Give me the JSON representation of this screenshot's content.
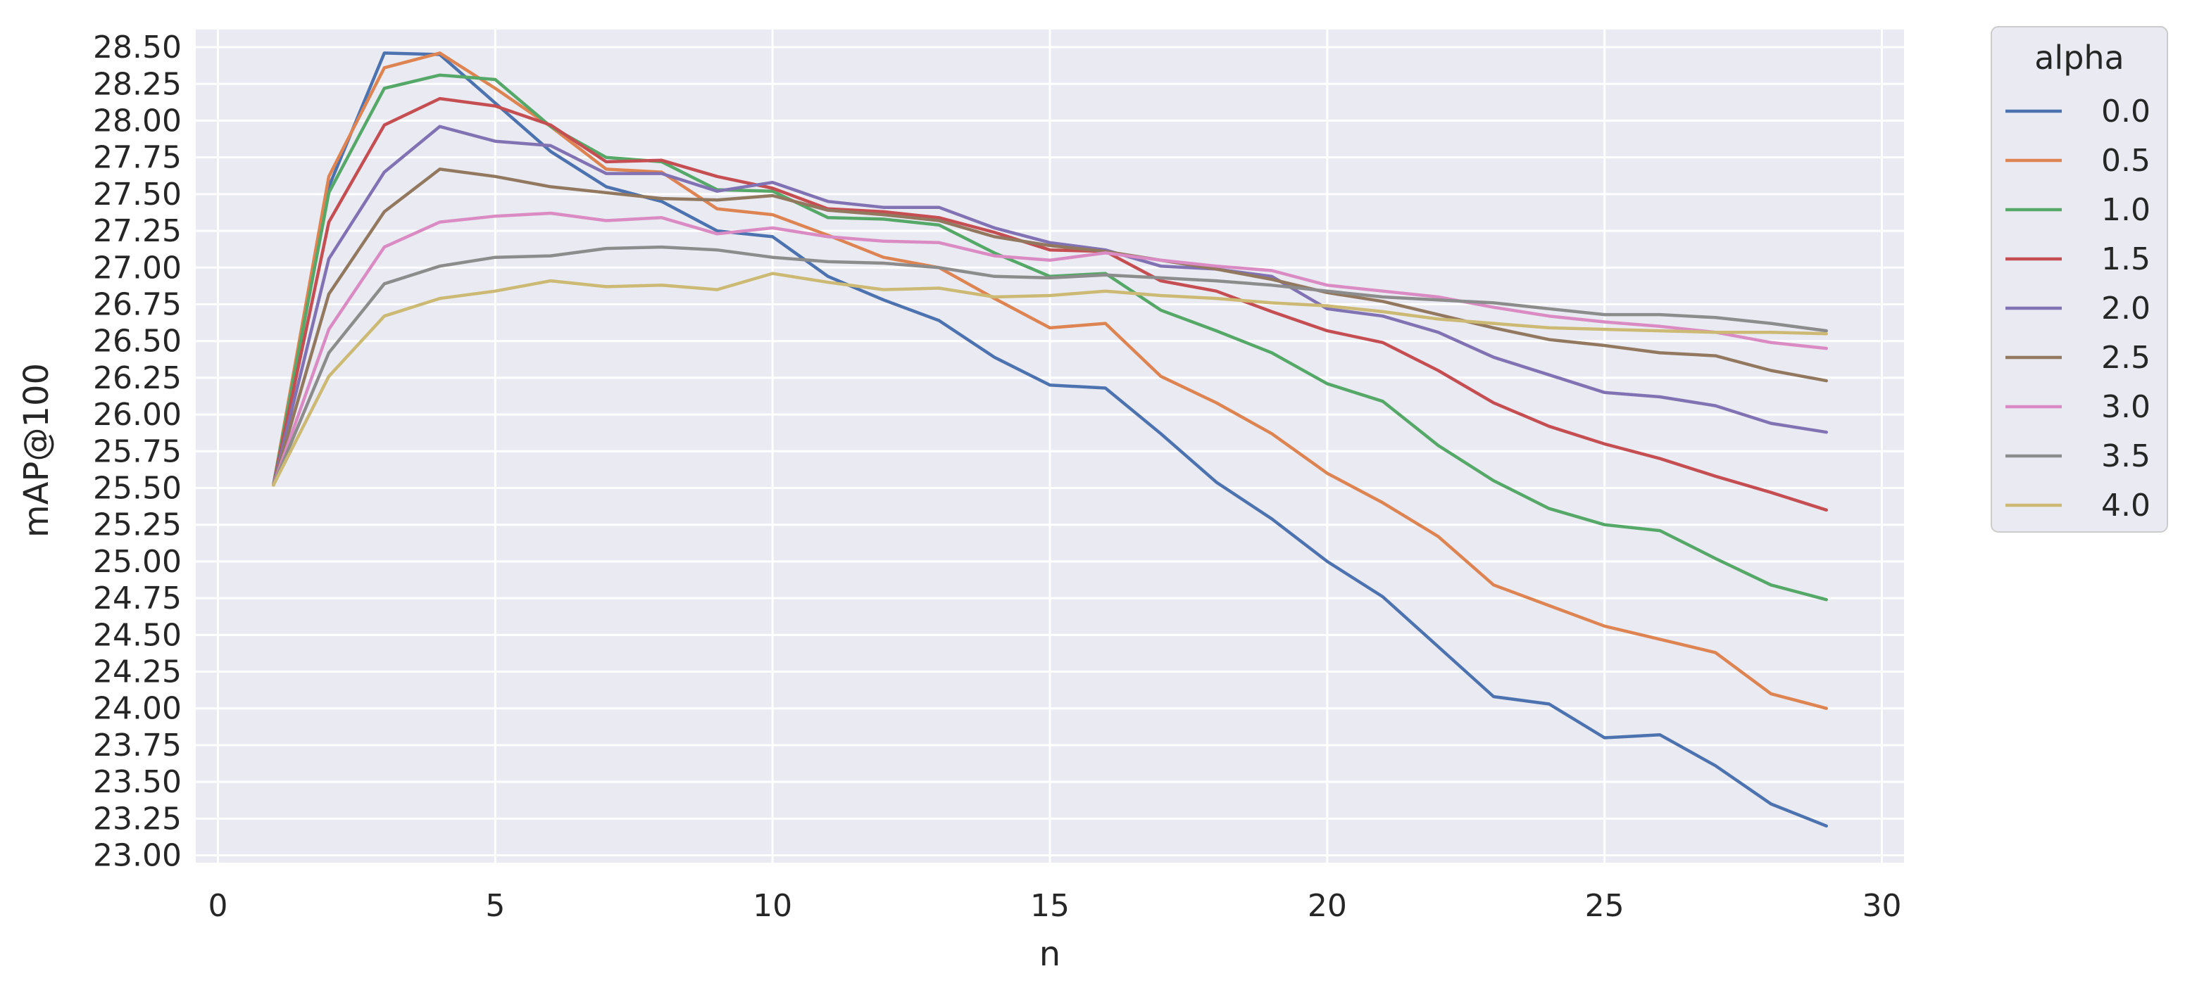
{
  "chart_data": {
    "type": "line",
    "xlabel": "n",
    "ylabel": "mAP@100",
    "xlim": [
      -0.4,
      30.4
    ],
    "ylim": [
      22.95,
      28.62
    ],
    "x_ticks": [
      0,
      5,
      10,
      15,
      20,
      25,
      30
    ],
    "y_ticks": [
      23.0,
      23.25,
      23.5,
      23.75,
      24.0,
      24.25,
      24.5,
      24.75,
      25.0,
      25.25,
      25.5,
      25.75,
      26.0,
      26.25,
      26.5,
      26.75,
      27.0,
      27.25,
      27.5,
      27.75,
      28.0,
      28.25,
      28.5
    ],
    "y_tick_labels": [
      "23.00",
      "23.25",
      "23.50",
      "23.75",
      "24.00",
      "24.25",
      "24.50",
      "24.75",
      "25.00",
      "25.25",
      "25.50",
      "25.75",
      "26.00",
      "26.25",
      "26.50",
      "26.75",
      "27.00",
      "27.25",
      "27.50",
      "27.75",
      "28.00",
      "28.25",
      "28.50"
    ],
    "grid": true,
    "background": "#eaeaf2",
    "legend": {
      "title": "alpha",
      "placement": "outside-right-top"
    },
    "x": [
      1,
      2,
      3,
      4,
      5,
      6,
      7,
      8,
      9,
      10,
      11,
      12,
      13,
      14,
      15,
      16,
      17,
      18,
      19,
      20,
      21,
      22,
      23,
      24,
      25,
      26,
      27,
      28,
      29
    ],
    "series": [
      {
        "name": "0.0",
        "color": "#4c72b0",
        "values": [
          25.52,
          27.55,
          28.46,
          28.45,
          28.12,
          27.79,
          27.55,
          27.45,
          27.25,
          27.21,
          26.94,
          26.78,
          26.64,
          26.39,
          26.2,
          26.18,
          25.87,
          25.54,
          25.29,
          25.0,
          24.76,
          24.42,
          24.08,
          24.03,
          23.8,
          23.82,
          23.61,
          23.35,
          23.2
        ]
      },
      {
        "name": "0.5",
        "color": "#dd8452",
        "values": [
          25.52,
          27.62,
          28.36,
          28.46,
          28.22,
          27.96,
          27.67,
          27.65,
          27.4,
          27.36,
          27.22,
          27.07,
          27.0,
          26.79,
          26.59,
          26.62,
          26.26,
          26.08,
          25.87,
          25.6,
          25.4,
          25.17,
          24.84,
          24.7,
          24.56,
          24.47,
          24.38,
          24.1,
          24.0
        ]
      },
      {
        "name": "1.0",
        "color": "#55a868",
        "values": [
          25.52,
          27.51,
          28.22,
          28.31,
          28.28,
          27.96,
          27.75,
          27.72,
          27.53,
          27.52,
          27.34,
          27.33,
          27.29,
          27.1,
          26.94,
          26.96,
          26.71,
          26.57,
          26.42,
          26.21,
          26.09,
          25.79,
          25.55,
          25.36,
          25.25,
          25.21,
          25.02,
          24.84,
          24.74
        ]
      },
      {
        "name": "1.5",
        "color": "#c44e52",
        "values": [
          25.52,
          27.31,
          27.97,
          28.15,
          28.1,
          27.97,
          27.72,
          27.73,
          27.62,
          27.54,
          27.4,
          27.38,
          27.34,
          27.24,
          27.12,
          27.11,
          26.91,
          26.84,
          26.7,
          26.57,
          26.49,
          26.3,
          26.08,
          25.92,
          25.8,
          25.7,
          25.58,
          25.47,
          25.35
        ]
      },
      {
        "name": "2.0",
        "color": "#8172b3",
        "values": [
          25.52,
          27.06,
          27.65,
          27.96,
          27.86,
          27.83,
          27.64,
          27.64,
          27.52,
          27.58,
          27.45,
          27.41,
          27.41,
          27.27,
          27.17,
          27.12,
          27.01,
          26.99,
          26.94,
          26.72,
          26.67,
          26.56,
          26.39,
          26.27,
          26.15,
          26.12,
          26.06,
          25.94,
          25.88
        ]
      },
      {
        "name": "2.5",
        "color": "#937860",
        "values": [
          25.52,
          26.82,
          27.38,
          27.67,
          27.62,
          27.55,
          27.51,
          27.47,
          27.46,
          27.49,
          27.39,
          27.36,
          27.32,
          27.21,
          27.15,
          27.11,
          27.05,
          26.99,
          26.92,
          26.83,
          26.77,
          26.68,
          26.59,
          26.51,
          26.47,
          26.42,
          26.4,
          26.3,
          26.23
        ]
      },
      {
        "name": "3.0",
        "color": "#da8bc3",
        "values": [
          25.52,
          26.58,
          27.14,
          27.31,
          27.35,
          27.37,
          27.32,
          27.34,
          27.23,
          27.27,
          27.21,
          27.18,
          27.17,
          27.08,
          27.05,
          27.1,
          27.05,
          27.01,
          26.98,
          26.88,
          26.84,
          26.8,
          26.73,
          26.67,
          26.63,
          26.6,
          26.56,
          26.49,
          26.45
        ]
      },
      {
        "name": "3.5",
        "color": "#8c8c8c",
        "values": [
          25.52,
          26.42,
          26.89,
          27.01,
          27.07,
          27.08,
          27.13,
          27.14,
          27.12,
          27.07,
          27.04,
          27.03,
          27.0,
          26.94,
          26.93,
          26.95,
          26.93,
          26.91,
          26.88,
          26.84,
          26.8,
          26.78,
          26.76,
          26.72,
          26.68,
          26.68,
          26.66,
          26.62,
          26.57
        ]
      },
      {
        "name": "4.0",
        "color": "#ccb974",
        "values": [
          25.52,
          26.26,
          26.67,
          26.79,
          26.84,
          26.91,
          26.87,
          26.88,
          26.85,
          26.96,
          26.9,
          26.85,
          26.86,
          26.8,
          26.81,
          26.84,
          26.81,
          26.79,
          26.76,
          26.74,
          26.7,
          26.65,
          26.62,
          26.59,
          26.58,
          26.57,
          26.56,
          26.56,
          26.55
        ]
      }
    ]
  }
}
